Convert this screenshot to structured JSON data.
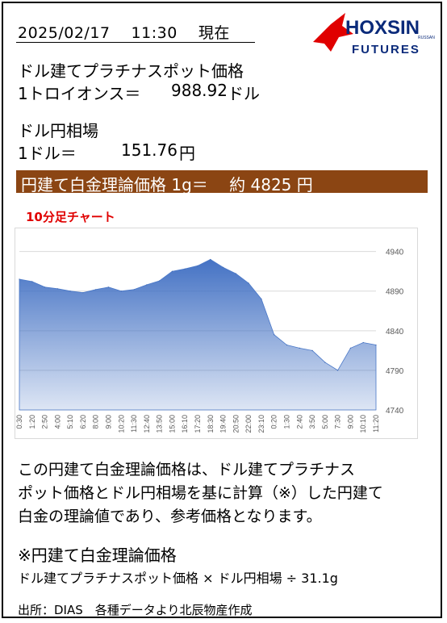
{
  "header": {
    "timestamp": "2025/02/17　 11:30　 現在",
    "logo_main": "HOXSIN",
    "logo_sub": "FUTURES",
    "logo_small": "RUSSAN"
  },
  "platinum": {
    "label": "ドル建てプラチナスポット価格",
    "unit_label": "1トロイオンス＝",
    "value": "988.92",
    "currency": "ドル"
  },
  "fx": {
    "label": "ドル円相場",
    "unit_label": "1ドル＝",
    "value": "151.76",
    "currency": "円"
  },
  "banner": {
    "text": "円建て白金理論価格 1g＝　 約 4825 円"
  },
  "chart_title": "10分足チャート",
  "chart_data": {
    "type": "area",
    "x": [
      "0:30",
      "1:20",
      "2:50",
      "4:00",
      "5:10",
      "6:20",
      "8:00",
      "9:00",
      "10:20",
      "11:30",
      "12:40",
      "13:50",
      "15:00",
      "16:10",
      "17:20",
      "18:30",
      "19:40",
      "20:50",
      "22:00",
      "23:10",
      "0:20",
      "1:30",
      "2:40",
      "3:50",
      "5:00",
      "7:30",
      "9:00",
      "10:10",
      "11:20"
    ],
    "values": [
      4905,
      4902,
      4895,
      4893,
      4890,
      4888,
      4892,
      4895,
      4890,
      4892,
      4898,
      4903,
      4915,
      4918,
      4922,
      4930,
      4920,
      4912,
      4900,
      4880,
      4835,
      4822,
      4818,
      4815,
      4800,
      4790,
      4818,
      4825,
      4822
    ],
    "ylim": [
      4740,
      4960
    ],
    "yticks": [
      4740,
      4790,
      4840,
      4890,
      4940
    ],
    "fill_color": "#4472c4",
    "grid": true
  },
  "description": {
    "line1": "この円建て白金理論価格は、ドル建てプラチナス",
    "line2": "ポット価格とドル円相場を基に計算（※）した円建て",
    "line3": "白金の理論値であり、参考価格となります。"
  },
  "formula": {
    "title": "※円建て白金理論価格",
    "expression": "ドル建てプラチナスポット価格 × ドル円相場 ÷ 31.1g"
  },
  "source": "出所：DIAS　各種データより北辰物産作成"
}
